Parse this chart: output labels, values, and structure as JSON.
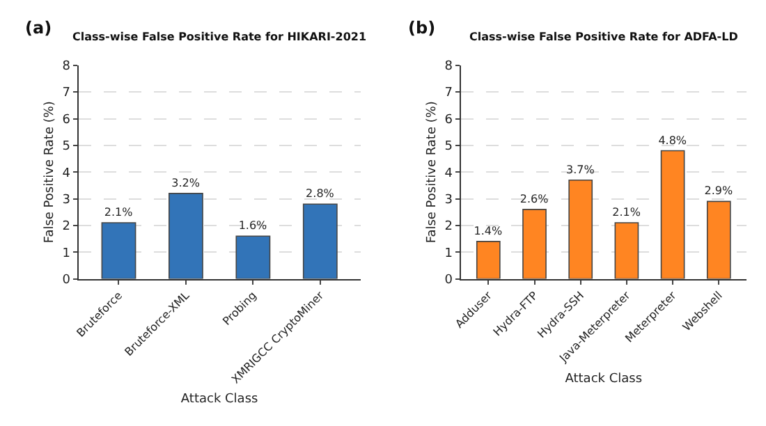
{
  "chart_data": [
    {
      "type": "bar",
      "title": "Class-wise False Positive Rate for HIKARI-2021",
      "annotations": [
        "(a)"
      ],
      "xlabel": "Attack Class",
      "ylabel": "False Positive Rate (%)",
      "categories": [
        "Bruteforce",
        "Bruteforce-XML",
        "Probing",
        "XMRIGCC CryptoMiner"
      ],
      "values": [
        2.1,
        3.2,
        1.6,
        2.8
      ],
      "value_labels": [
        "2.1%",
        "3.2%",
        "1.6%",
        "2.8%"
      ],
      "color": "#3274b8",
      "ylim": [
        0,
        8
      ],
      "yticks": [
        0,
        1,
        2,
        3,
        4,
        5,
        6,
        7,
        8
      ],
      "grid": "y"
    },
    {
      "type": "bar",
      "title": "Class-wise False Positive Rate for ADFA-LD",
      "annotations": [
        "(b)"
      ],
      "xlabel": "Attack Class",
      "ylabel": "False Positive Rate (%)",
      "categories": [
        "Adduser",
        "Hydra-FTP",
        "Hydra-SSH",
        "Java-Meterpreter",
        "Meterpreter",
        "Webshell"
      ],
      "values": [
        1.4,
        2.6,
        3.7,
        2.1,
        4.8,
        2.9
      ],
      "value_labels": [
        "1.4%",
        "2.6%",
        "3.7%",
        "2.1%",
        "4.8%",
        "2.9%"
      ],
      "color": "#ff8522",
      "ylim": [
        0,
        8
      ],
      "yticks": [
        0,
        1,
        2,
        3,
        4,
        5,
        6,
        7,
        8
      ],
      "grid": "y"
    }
  ]
}
